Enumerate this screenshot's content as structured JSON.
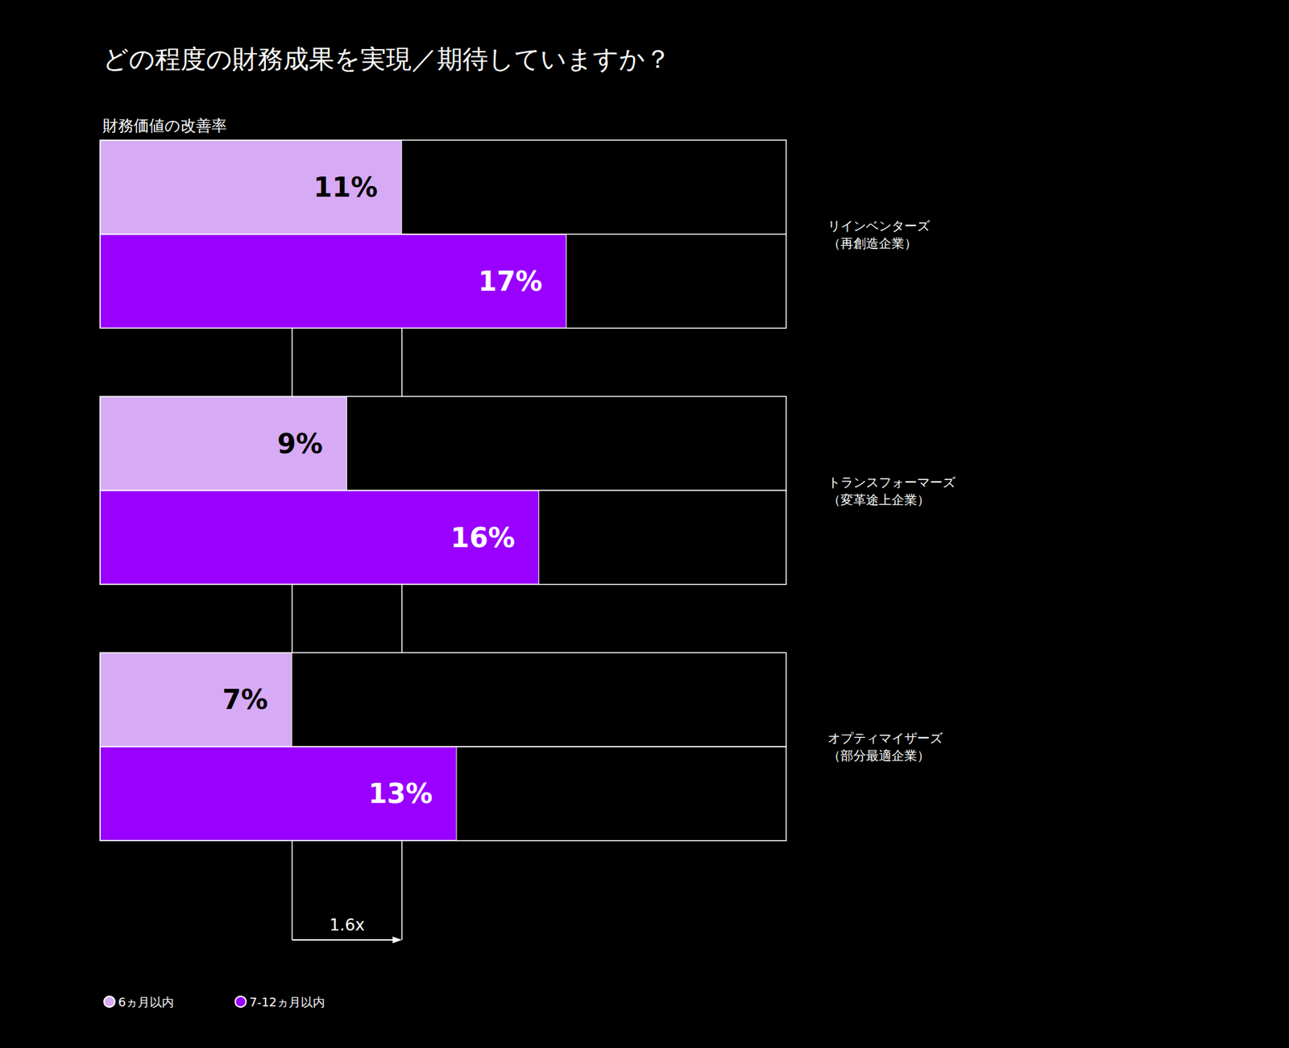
{
  "chart_data": {
    "type": "bar",
    "title": "どの程度の財務成果を実現／期待していますか？",
    "x_label": "財務価値の改善率",
    "orientation": "horizontal",
    "categories": [
      "リインベンターズ\n（再創造企業）",
      "トランスフォーマーズ\n（変革途上企業）",
      "オプティマイザーズ\n（部分最適企業）"
    ],
    "series": [
      {
        "name": "6ヵ月以内",
        "color": "#d7aaf5",
        "values": [
          11,
          9,
          7
        ],
        "value_labels": [
          "11%",
          "9%",
          "7%"
        ]
      },
      {
        "name": "7-12ヵ月以内",
        "color": "#9900ff",
        "values": [
          17,
          16,
          13
        ],
        "value_labels": [
          "17%",
          "16%",
          "13%"
        ]
      }
    ],
    "xlim": [
      0,
      25
    ],
    "tick_labels": false,
    "grid": false,
    "data_labels": true,
    "legend": "bottom-left",
    "annotations": [
      {
        "text": "1.6x",
        "from": 7,
        "to": 11
      }
    ]
  }
}
